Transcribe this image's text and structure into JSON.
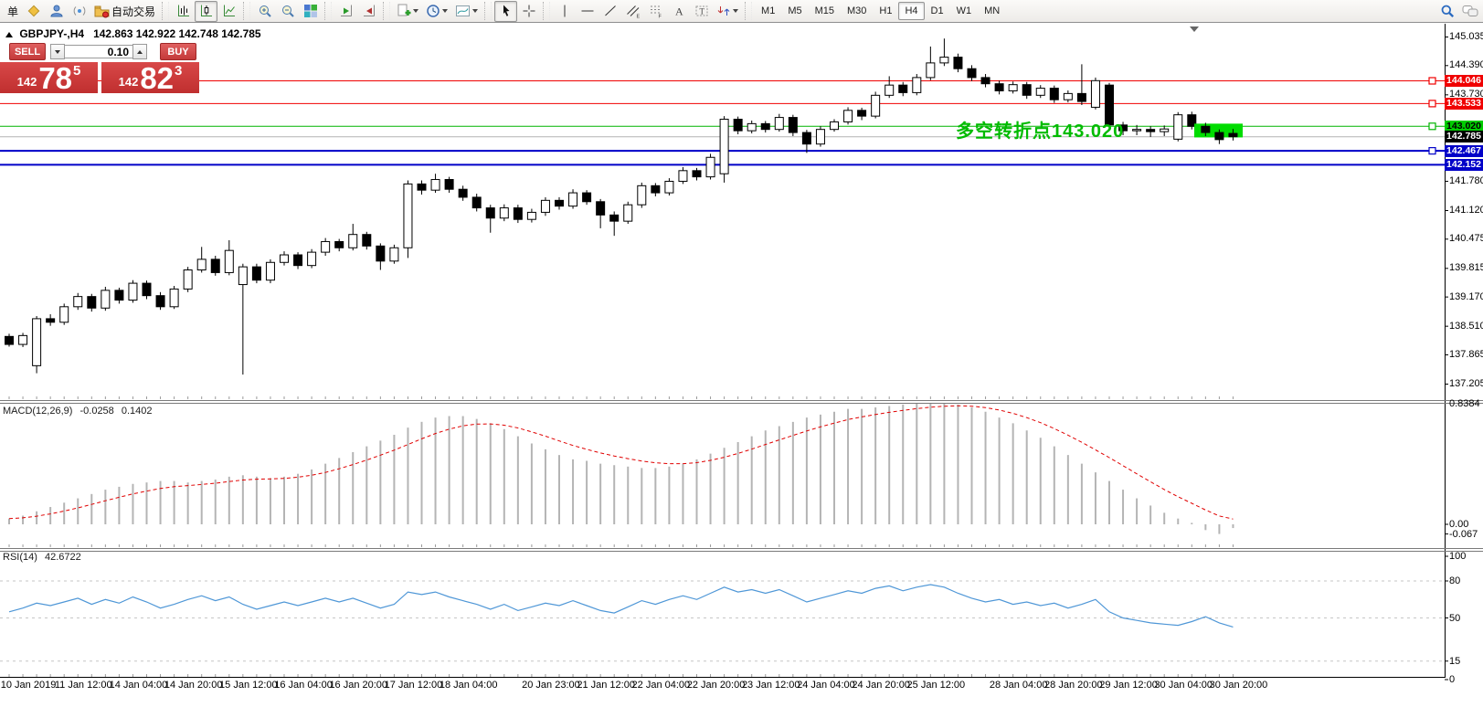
{
  "toolbar": {
    "order_label": "单",
    "autotrading_label": "自动交易",
    "timeframes": [
      "M1",
      "M5",
      "M15",
      "M30",
      "H1",
      "H4",
      "D1",
      "W1",
      "MN"
    ],
    "active_timeframe": "H4",
    "icon_names": [
      "new-order",
      "history-center",
      "community",
      "signals",
      "market-autotrading",
      "bar-chart",
      "candlestick-chart",
      "line-chart",
      "zoom-in",
      "zoom-out",
      "tile-windows",
      "auto-scroll",
      "chart-shift",
      "indicators",
      "periods",
      "templates",
      "cursor",
      "crosshair",
      "vertical-line",
      "horizontal-line",
      "trendline",
      "equidistant-channel",
      "fibonacci",
      "text",
      "text-label",
      "arrows",
      "search",
      "chat"
    ]
  },
  "chart": {
    "symbol_period": "GBPJPY-,H4",
    "ohlc_line": "142.863 142.922 142.748 142.785",
    "trade_panel": {
      "sell_label": "SELL",
      "buy_label": "BUY",
      "volume": "0.10",
      "sell_price": {
        "prefix": "142",
        "big": "78",
        "sup": "5"
      },
      "buy_price": {
        "prefix": "142",
        "big": "82",
        "sup": "3"
      }
    },
    "annotation": {
      "text": "多空转折点143.020",
      "color": "#00bb00"
    }
  },
  "indicators": {
    "macd": {
      "label": "MACD(12,26,9)",
      "value": "-0.0258",
      "signal_value": "0.1402"
    },
    "rsi": {
      "label": "RSI(14)",
      "value": "42.6722"
    }
  },
  "chart_data": {
    "type": "candlestick",
    "symbol": "GBPJPY-",
    "timeframe": "H4",
    "current_price": 142.785,
    "ohlc": [
      [
        138.28,
        138.34,
        138.05,
        138.1
      ],
      [
        138.1,
        138.36,
        138.04,
        138.3
      ],
      [
        137.62,
        138.74,
        137.45,
        138.68
      ],
      [
        138.68,
        138.78,
        138.52,
        138.6
      ],
      [
        138.6,
        139.02,
        138.54,
        138.95
      ],
      [
        138.95,
        139.26,
        138.88,
        139.18
      ],
      [
        139.18,
        139.24,
        138.84,
        138.92
      ],
      [
        138.92,
        139.4,
        138.86,
        139.32
      ],
      [
        139.32,
        139.38,
        139.02,
        139.1
      ],
      [
        139.1,
        139.55,
        139.04,
        139.48
      ],
      [
        139.48,
        139.54,
        139.12,
        139.2
      ],
      [
        139.2,
        139.28,
        138.88,
        138.95
      ],
      [
        138.95,
        139.42,
        138.9,
        139.35
      ],
      [
        139.35,
        139.85,
        139.28,
        139.78
      ],
      [
        139.78,
        140.3,
        139.72,
        140.02
      ],
      [
        140.02,
        140.1,
        139.65,
        139.72
      ],
      [
        139.72,
        140.45,
        139.66,
        140.22
      ],
      [
        139.45,
        139.92,
        137.42,
        139.85
      ],
      [
        139.85,
        139.92,
        139.48,
        139.55
      ],
      [
        139.55,
        140.02,
        139.48,
        139.95
      ],
      [
        139.95,
        140.2,
        139.88,
        140.12
      ],
      [
        140.12,
        140.18,
        139.8,
        139.88
      ],
      [
        139.88,
        140.25,
        139.82,
        140.18
      ],
      [
        140.18,
        140.5,
        140.1,
        140.42
      ],
      [
        140.42,
        140.48,
        140.2,
        140.28
      ],
      [
        140.28,
        140.82,
        140.22,
        140.58
      ],
      [
        140.58,
        140.64,
        140.24,
        140.32
      ],
      [
        140.32,
        140.38,
        139.78,
        139.98
      ],
      [
        139.98,
        140.35,
        139.92,
        140.28
      ],
      [
        140.28,
        141.8,
        140.05,
        141.72
      ],
      [
        141.72,
        141.8,
        141.48,
        141.58
      ],
      [
        141.58,
        141.95,
        141.52,
        141.82
      ],
      [
        141.82,
        141.88,
        141.52,
        141.6
      ],
      [
        141.6,
        141.68,
        141.34,
        141.42
      ],
      [
        141.42,
        141.5,
        141.1,
        141.18
      ],
      [
        141.18,
        141.25,
        140.62,
        140.95
      ],
      [
        140.95,
        141.26,
        140.88,
        141.18
      ],
      [
        141.18,
        141.25,
        140.84,
        140.92
      ],
      [
        140.92,
        141.16,
        140.85,
        141.08
      ],
      [
        141.08,
        141.42,
        141.0,
        141.35
      ],
      [
        141.35,
        141.42,
        141.14,
        141.22
      ],
      [
        141.22,
        141.6,
        141.16,
        141.52
      ],
      [
        141.52,
        141.58,
        141.25,
        141.32
      ],
      [
        141.32,
        141.38,
        140.72,
        141.02
      ],
      [
        141.02,
        141.1,
        140.55,
        140.88
      ],
      [
        140.88,
        141.32,
        140.82,
        141.25
      ],
      [
        141.25,
        141.75,
        141.18,
        141.68
      ],
      [
        141.68,
        141.74,
        141.44,
        141.52
      ],
      [
        141.52,
        141.85,
        141.46,
        141.78
      ],
      [
        141.78,
        142.1,
        141.72,
        142.02
      ],
      [
        142.02,
        142.08,
        141.8,
        141.88
      ],
      [
        141.88,
        142.4,
        141.82,
        142.32
      ],
      [
        141.95,
        143.25,
        141.75,
        143.18
      ],
      [
        143.18,
        143.24,
        142.84,
        142.92
      ],
      [
        142.92,
        143.15,
        142.86,
        143.08
      ],
      [
        143.08,
        143.14,
        142.88,
        142.95
      ],
      [
        142.95,
        143.3,
        142.9,
        143.22
      ],
      [
        143.22,
        143.28,
        142.8,
        142.88
      ],
      [
        142.88,
        142.94,
        142.42,
        142.62
      ],
      [
        142.62,
        143.02,
        142.56,
        142.95
      ],
      [
        142.95,
        143.18,
        142.9,
        143.12
      ],
      [
        143.12,
        143.45,
        143.06,
        143.38
      ],
      [
        143.38,
        143.44,
        143.16,
        143.25
      ],
      [
        143.25,
        143.8,
        143.2,
        143.72
      ],
      [
        143.72,
        144.15,
        143.66,
        143.95
      ],
      [
        143.95,
        144.02,
        143.7,
        143.78
      ],
      [
        143.78,
        144.2,
        143.72,
        144.12
      ],
      [
        144.12,
        144.82,
        144.06,
        144.45
      ],
      [
        144.45,
        145.0,
        144.38,
        144.58
      ],
      [
        144.58,
        144.66,
        144.24,
        144.32
      ],
      [
        144.32,
        144.4,
        144.04,
        144.12
      ],
      [
        144.12,
        144.2,
        143.9,
        143.98
      ],
      [
        143.98,
        144.05,
        143.74,
        143.82
      ],
      [
        143.82,
        144.03,
        143.76,
        143.96
      ],
      [
        143.96,
        144.02,
        143.64,
        143.72
      ],
      [
        143.72,
        143.95,
        143.66,
        143.88
      ],
      [
        143.88,
        143.94,
        143.55,
        143.62
      ],
      [
        143.62,
        143.83,
        143.56,
        143.76
      ],
      [
        143.76,
        144.42,
        143.5,
        143.58
      ],
      [
        143.45,
        144.12,
        143.4,
        144.05
      ],
      [
        143.95,
        144.0,
        142.95,
        143.05
      ],
      [
        143.05,
        143.12,
        142.82,
        142.92
      ],
      [
        142.92,
        143.05,
        142.82,
        142.95
      ],
      [
        142.95,
        143.02,
        142.78,
        142.9
      ],
      [
        142.9,
        143.04,
        142.8,
        142.96
      ],
      [
        142.73,
        143.34,
        142.68,
        143.28
      ],
      [
        143.28,
        143.35,
        142.95,
        143.02
      ],
      [
        143.02,
        143.1,
        142.8,
        142.88
      ],
      [
        142.88,
        142.95,
        142.62,
        142.72
      ],
      [
        142.86,
        142.96,
        142.7,
        142.785
      ]
    ],
    "y_ticks": [
      {
        "v": 145.035,
        "t": "145.035"
      },
      {
        "v": 144.39,
        "t": "144.390"
      },
      {
        "v": 143.73,
        "t": "143.730"
      },
      {
        "v": 141.78,
        "t": "141.780"
      },
      {
        "v": 141.12,
        "t": "141.120"
      },
      {
        "v": 140.475,
        "t": "140.475"
      },
      {
        "v": 139.815,
        "t": "139.815"
      },
      {
        "v": 139.17,
        "t": "139.170"
      },
      {
        "v": 138.51,
        "t": "138.510"
      },
      {
        "v": 137.865,
        "t": "137.865"
      },
      {
        "v": 137.205,
        "t": "137.205"
      }
    ],
    "hlines": [
      {
        "price": 144.046,
        "color": "#f00000",
        "width": 1,
        "marker": true
      },
      {
        "price": 143.533,
        "color": "#f00000",
        "width": 1,
        "marker": true
      },
      {
        "price": 143.02,
        "color": "#00b400",
        "width": 1,
        "marker": true
      },
      {
        "price": 142.785,
        "color": "#b4b4b4",
        "width": 1,
        "marker": false
      },
      {
        "price": 142.467,
        "color": "#0000c8",
        "width": 2,
        "marker": true
      },
      {
        "price": 142.152,
        "color": "#0000c8",
        "width": 2,
        "marker": false
      }
    ],
    "price_badges": [
      {
        "t": "144.046",
        "v": 144.046,
        "bg": "#f00000",
        "fg": "#ffffff"
      },
      {
        "t": "143.533",
        "v": 143.533,
        "bg": "#f00000",
        "fg": "#ffffff"
      },
      {
        "t": "143.020",
        "v": 143.02,
        "bg": "#00cc00",
        "fg": "#000000"
      },
      {
        "t": "142.785",
        "v": 142.785,
        "bg": "#000000",
        "fg": "#ffffff"
      },
      {
        "t": "142.467",
        "v": 142.467,
        "bg": "#0000c8",
        "fg": "#ffffff"
      },
      {
        "t": "142.152",
        "v": 142.152,
        "bg": "#0000c8",
        "fg": "#ffffff"
      }
    ],
    "highlight_box": {
      "x": 1307,
      "width": 53,
      "top_price": 143.08,
      "bottom_price": 142.77,
      "color": "#00dc00"
    },
    "x_labels": [
      {
        "text": "10 Jan 2019",
        "bar": 1
      },
      {
        "text": "11 Jan 12:00",
        "bar": 5
      },
      {
        "text": "14 Jan 04:00",
        "bar": 9
      },
      {
        "text": "14 Jan 20:00",
        "bar": 13
      },
      {
        "text": "15 Jan 12:00",
        "bar": 17
      },
      {
        "text": "16 Jan 04:00",
        "bar": 21
      },
      {
        "text": "16 Jan 20:00",
        "bar": 25
      },
      {
        "text": "17 Jan 12:00",
        "bar": 29
      },
      {
        "text": "18 Jan 04:00",
        "bar": 33
      },
      {
        "text": "20 Jan 23:00",
        "bar": 39
      },
      {
        "text": "21 Jan 12:00",
        "bar": 43
      },
      {
        "text": "22 Jan 04:00",
        "bar": 47
      },
      {
        "text": "22 Jan 20:00",
        "bar": 51
      },
      {
        "text": "23 Jan 12:00",
        "bar": 55
      },
      {
        "text": "24 Jan 04:00",
        "bar": 59
      },
      {
        "text": "24 Jan 20:00",
        "bar": 63
      },
      {
        "text": "25 Jan 12:00",
        "bar": 67
      },
      {
        "text": "28 Jan 04:00",
        "bar": 73
      },
      {
        "text": "28 Jan 20:00",
        "bar": 77
      },
      {
        "text": "29 Jan 12:00",
        "bar": 81
      },
      {
        "text": "30 Jan 04:00",
        "bar": 85
      },
      {
        "text": "30 Jan 20:00",
        "bar": 89
      }
    ],
    "macd": {
      "type": "bar",
      "values": [
        0.04,
        0.06,
        0.09,
        0.12,
        0.15,
        0.18,
        0.21,
        0.24,
        0.26,
        0.28,
        0.29,
        0.3,
        0.3,
        0.29,
        0.3,
        0.31,
        0.33,
        0.34,
        0.33,
        0.32,
        0.33,
        0.35,
        0.38,
        0.42,
        0.46,
        0.5,
        0.54,
        0.58,
        0.62,
        0.67,
        0.71,
        0.74,
        0.75,
        0.75,
        0.73,
        0.7,
        0.66,
        0.61,
        0.56,
        0.52,
        0.48,
        0.45,
        0.44,
        0.42,
        0.41,
        0.4,
        0.39,
        0.39,
        0.4,
        0.42,
        0.45,
        0.49,
        0.53,
        0.57,
        0.61,
        0.65,
        0.68,
        0.71,
        0.74,
        0.76,
        0.78,
        0.8,
        0.8,
        0.81,
        0.82,
        0.83,
        0.84,
        0.84,
        0.84,
        0.83,
        0.81,
        0.78,
        0.74,
        0.7,
        0.65,
        0.6,
        0.54,
        0.48,
        0.42,
        0.36,
        0.3,
        0.24,
        0.18,
        0.13,
        0.08,
        0.04,
        0.01,
        -0.04,
        -0.067,
        -0.0258
      ],
      "bar_color": "#b4b4b4",
      "signal_color": "#e00000",
      "axis": [
        {
          "v": 0.8384,
          "t": "0.8384"
        },
        {
          "v": 0,
          "t": "0.00"
        },
        {
          "v": -0.067,
          "t": "-0.067"
        }
      ]
    },
    "rsi": {
      "type": "line",
      "values": [
        55,
        58,
        62,
        60,
        63,
        66,
        61,
        65,
        62,
        67,
        63,
        58,
        61,
        65,
        68,
        64,
        67,
        61,
        57,
        60,
        63,
        60,
        63,
        66,
        63,
        66,
        62,
        58,
        61,
        71,
        69,
        71,
        67,
        64,
        61,
        57,
        61,
        56,
        59,
        62,
        60,
        64,
        60,
        56,
        54,
        59,
        64,
        61,
        65,
        68,
        65,
        70,
        75,
        71,
        73,
        70,
        73,
        68,
        63,
        66,
        69,
        72,
        70,
        74,
        76,
        72,
        75,
        77,
        75,
        70,
        66,
        63,
        65,
        61,
        63,
        60,
        62,
        58,
        61,
        65,
        55,
        50,
        48,
        46,
        45,
        44,
        47,
        51,
        46,
        42.67
      ],
      "line_color": "#4f97d7",
      "levels": [
        80,
        50,
        15
      ],
      "axis": [
        {
          "v": 100,
          "t": "100"
        },
        {
          "v": 80,
          "t": "80"
        },
        {
          "v": 50,
          "t": "50"
        },
        {
          "v": 15,
          "t": "15"
        },
        {
          "v": 0,
          "t": "0"
        }
      ]
    }
  }
}
